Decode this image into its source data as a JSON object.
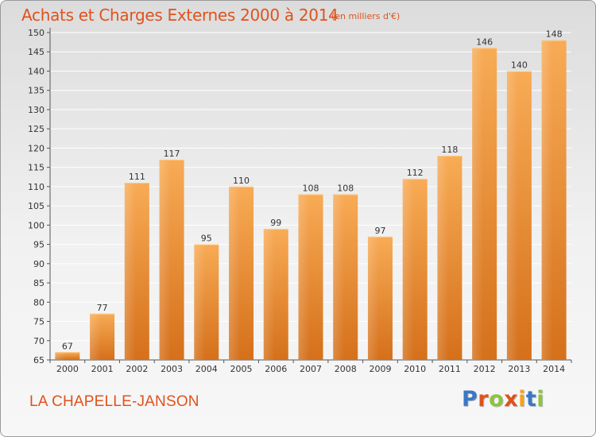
{
  "title": "Achats et Charges Externes 2000 à 2014",
  "unit_note": "(en milliers d'€)",
  "commune": "LA CHAPELLE-JANSON",
  "logo": {
    "text": "Proxiti",
    "colors": [
      "#3a78c4",
      "#e0521c",
      "#8bc43f",
      "#e0521c",
      "#f2a51a",
      "#3a78c4",
      "#8bc43f"
    ]
  },
  "colors": {
    "accent": "#e0521c",
    "bar_light": "#f7a851",
    "bar_dark": "#d8721c"
  },
  "chart_data": {
    "type": "bar",
    "title": "Achats et Charges Externes 2000 à 2014",
    "xlabel": "",
    "ylabel": "",
    "ylim": [
      65,
      150
    ],
    "yticks": [
      65,
      70,
      75,
      80,
      85,
      90,
      95,
      100,
      105,
      110,
      115,
      120,
      125,
      130,
      135,
      140,
      145,
      150
    ],
    "grid": true,
    "categories": [
      "2000",
      "2001",
      "2002",
      "2003",
      "2004",
      "2005",
      "2006",
      "2007",
      "2008",
      "2009",
      "2010",
      "2011",
      "2012",
      "2013",
      "2014"
    ],
    "values": [
      67,
      77,
      111,
      117,
      95,
      110,
      99,
      108,
      108,
      97,
      112,
      118,
      146,
      140,
      148
    ]
  }
}
